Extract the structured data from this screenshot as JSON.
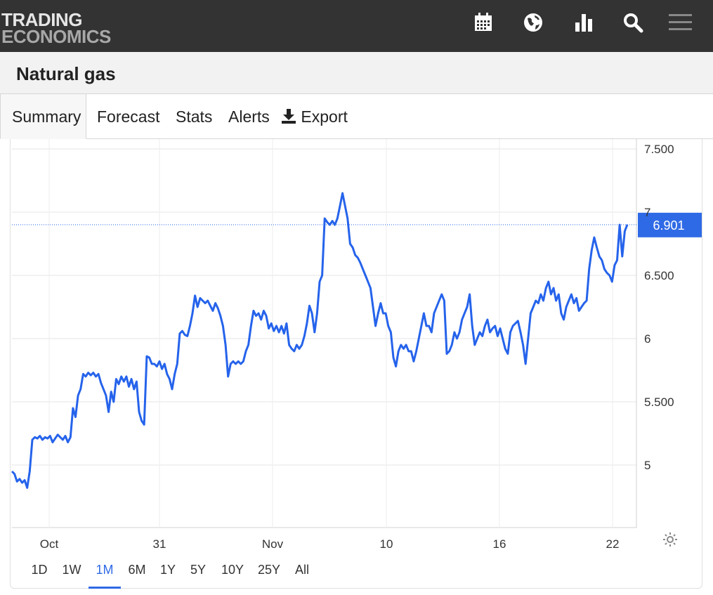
{
  "header": {
    "logo_line1": "TRADING",
    "logo_line2": "ECONOMICS",
    "icons": [
      "calendar-icon",
      "globe-icon",
      "bar-chart-icon",
      "search-icon",
      "menu-icon"
    ]
  },
  "title": "Natural gas",
  "tabs": [
    {
      "label": "Summary",
      "active": true
    },
    {
      "label": "Forecast"
    },
    {
      "label": "Stats"
    },
    {
      "label": "Alerts"
    },
    {
      "label": "Export",
      "icon": "download-icon"
    }
  ],
  "ranges": [
    "1D",
    "1W",
    "1M",
    "6M",
    "1Y",
    "5Y",
    "10Y",
    "25Y",
    "All"
  ],
  "active_range": "1M",
  "colors": {
    "line": "#2563eb",
    "label_bg": "#2f6ae6",
    "header_bg": "#333333"
  },
  "chart_data": {
    "type": "line",
    "series": [
      {
        "values": [
          4.95,
          4.93,
          4.87,
          4.89,
          4.86,
          4.88,
          4.82,
          4.95,
          5.2,
          5.22,
          5.21,
          5.23,
          5.2,
          5.22,
          5.21,
          5.23,
          5.18,
          5.21,
          5.24,
          5.22,
          5.2,
          5.23,
          5.18,
          5.22,
          5.45,
          5.38,
          5.55,
          5.6,
          5.72,
          5.7,
          5.73,
          5.71,
          5.73,
          5.7,
          5.72,
          5.65,
          5.6,
          5.55,
          5.42,
          5.58,
          5.5,
          5.68,
          5.64,
          5.7,
          5.66,
          5.7,
          5.62,
          5.68,
          5.6,
          5.66,
          5.42,
          5.35,
          5.32,
          5.86,
          5.85,
          5.8,
          5.8,
          5.78,
          5.82,
          5.76,
          5.8,
          5.72,
          5.68,
          5.6,
          5.72,
          5.8,
          6.04,
          6.06,
          6.03,
          6.02,
          6.1,
          6.2,
          6.34,
          6.25,
          6.32,
          6.3,
          6.28,
          6.3,
          6.26,
          6.22,
          6.28,
          6.24,
          6.18,
          6.1,
          5.95,
          5.7,
          5.8,
          5.82,
          5.8,
          5.82,
          5.8,
          5.82,
          5.9,
          5.95,
          6.1,
          6.22,
          6.18,
          6.2,
          6.15,
          6.22,
          6.18,
          6.08,
          6.12,
          6.06,
          6.1,
          6.05,
          6.1,
          6.04,
          6.12,
          5.95,
          5.92,
          5.9,
          5.95,
          5.92,
          5.95,
          6.02,
          6.12,
          6.26,
          6.2,
          6.05,
          6.2,
          6.45,
          6.5,
          6.95,
          6.92,
          6.9,
          6.93,
          6.9,
          6.95,
          7.05,
          7.15,
          7.05,
          6.95,
          6.75,
          6.72,
          6.66,
          6.64,
          6.6,
          6.55,
          6.5,
          6.45,
          6.4,
          6.25,
          6.1,
          6.2,
          6.28,
          6.2,
          6.2,
          6.1,
          6.05,
          5.85,
          5.78,
          5.9,
          5.95,
          5.92,
          5.95,
          5.9,
          5.9,
          5.82,
          5.9,
          6.0,
          6.1,
          6.2,
          6.1,
          6.1,
          6.05,
          6.2,
          6.25,
          6.3,
          6.35,
          6.3,
          5.88,
          5.9,
          5.95,
          6.05,
          6.0,
          6.05,
          6.15,
          6.2,
          6.25,
          6.35,
          6.1,
          5.95,
          6.0,
          6.05,
          6.02,
          6.1,
          6.15,
          6.05,
          6.08,
          6.1,
          6.02,
          6.08,
          6.0,
          5.92,
          5.88,
          6.05,
          6.1,
          6.12,
          6.14,
          6.05,
          5.95,
          5.8,
          6.0,
          6.2,
          6.25,
          6.3,
          6.28,
          6.35,
          6.3,
          6.4,
          6.45,
          6.35,
          6.4,
          6.3,
          6.35,
          6.2,
          6.15,
          6.25,
          6.3,
          6.35,
          6.28,
          6.32,
          6.22,
          6.25,
          6.28,
          6.3,
          6.55,
          6.7,
          6.8,
          6.72,
          6.65,
          6.62,
          6.55,
          6.52,
          6.5,
          6.45,
          6.58,
          6.62,
          6.9,
          6.65,
          6.85,
          6.901
        ]
      }
    ],
    "x_tick_labels": [
      "Oct",
      "31",
      "Nov",
      "10",
      "16",
      "22"
    ],
    "y_tick_labels": [
      "7.500",
      "7",
      "6.500",
      "6",
      "5.500",
      "5"
    ],
    "y_ticks": [
      7.5,
      7,
      6.5,
      6,
      5.5,
      5
    ],
    "ylim": [
      4.55,
      7.55
    ],
    "last_value_label": "6.901",
    "last_value": 6.901,
    "grid": true
  }
}
